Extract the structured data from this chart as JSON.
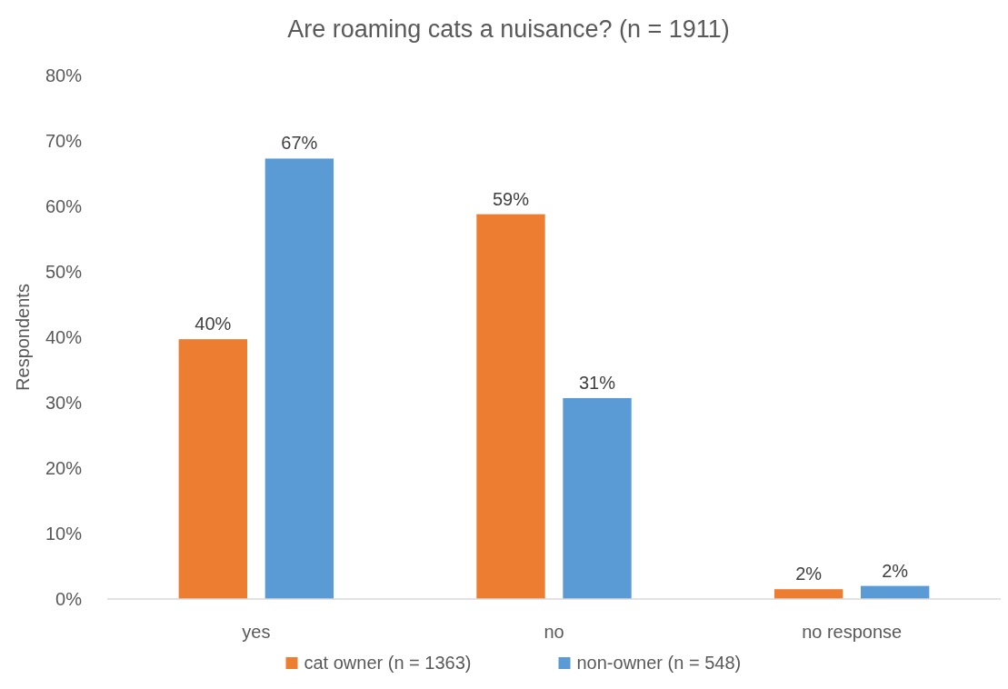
{
  "chart_data": {
    "type": "bar",
    "title": "Are roaming cats a nuisance? (n = 1911)",
    "ylabel": "Respondents",
    "categories": [
      "yes",
      "no",
      "no response"
    ],
    "series": [
      {
        "name": "cat owner (n = 1363)",
        "color": "#ed7d31",
        "values": [
          39.7,
          58.8,
          1.5
        ],
        "value_labels": [
          "40%",
          "59%",
          "2%"
        ]
      },
      {
        "name": "non-owner (n = 548)",
        "color": "#5b9bd5",
        "values": [
          67.3,
          30.7,
          2.0
        ],
        "value_labels": [
          "67%",
          "31%",
          "2%"
        ]
      }
    ],
    "ylim": [
      0,
      80
    ],
    "yticks": [
      {
        "value": 0,
        "label": "0%"
      },
      {
        "value": 10,
        "label": "10%"
      },
      {
        "value": 20,
        "label": "20%"
      },
      {
        "value": 30,
        "label": "30%"
      },
      {
        "value": 40,
        "label": "40%"
      },
      {
        "value": 50,
        "label": "50%"
      },
      {
        "value": 60,
        "label": "60%"
      },
      {
        "value": 70,
        "label": "70%"
      },
      {
        "value": 80,
        "label": "80%"
      }
    ],
    "legend": "bottom",
    "grid": false
  }
}
